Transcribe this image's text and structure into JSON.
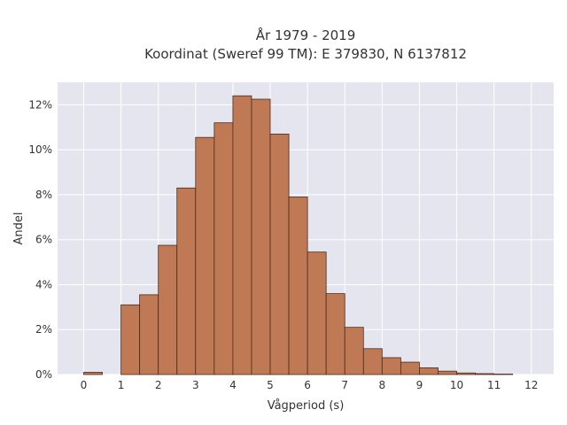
{
  "chart_data": {
    "type": "bar",
    "title_lines": [
      "År 1979 - 2019",
      "Koordinat (Sweref 99 TM): E 379830, N 6137812"
    ],
    "xlabel": "Vågperiod (s)",
    "ylabel": "Andel",
    "x_ticks": [
      0,
      1,
      2,
      3,
      4,
      5,
      6,
      7,
      8,
      9,
      10,
      11,
      12
    ],
    "y_ticks": [
      0,
      2,
      4,
      6,
      8,
      10,
      12
    ],
    "y_tick_suffix": "%",
    "xlim": [
      -0.7,
      12.6
    ],
    "ylim": [
      0,
      13
    ],
    "bin_width": 0.5,
    "bins": [
      {
        "x": 0.0,
        "value": 0.1
      },
      {
        "x": 1.0,
        "value": 3.1
      },
      {
        "x": 1.5,
        "value": 3.55
      },
      {
        "x": 2.0,
        "value": 5.75
      },
      {
        "x": 2.5,
        "value": 8.3
      },
      {
        "x": 3.0,
        "value": 10.55
      },
      {
        "x": 3.5,
        "value": 11.2
      },
      {
        "x": 4.0,
        "value": 12.4
      },
      {
        "x": 4.5,
        "value": 12.25
      },
      {
        "x": 5.0,
        "value": 10.7
      },
      {
        "x": 5.5,
        "value": 7.9
      },
      {
        "x": 6.0,
        "value": 5.45
      },
      {
        "x": 6.5,
        "value": 3.6
      },
      {
        "x": 7.0,
        "value": 2.1
      },
      {
        "x": 7.5,
        "value": 1.15
      },
      {
        "x": 8.0,
        "value": 0.75
      },
      {
        "x": 8.5,
        "value": 0.55
      },
      {
        "x": 9.0,
        "value": 0.3
      },
      {
        "x": 9.5,
        "value": 0.15
      },
      {
        "x": 10.0,
        "value": 0.07
      },
      {
        "x": 10.5,
        "value": 0.04
      },
      {
        "x": 11.0,
        "value": 0.02
      }
    ],
    "colors": {
      "bar_fill": "#bf7a55",
      "bar_stroke": "#4a2c1c",
      "plot_bg": "#e5e5f0",
      "grid": "#ffffff"
    },
    "grid": true
  }
}
